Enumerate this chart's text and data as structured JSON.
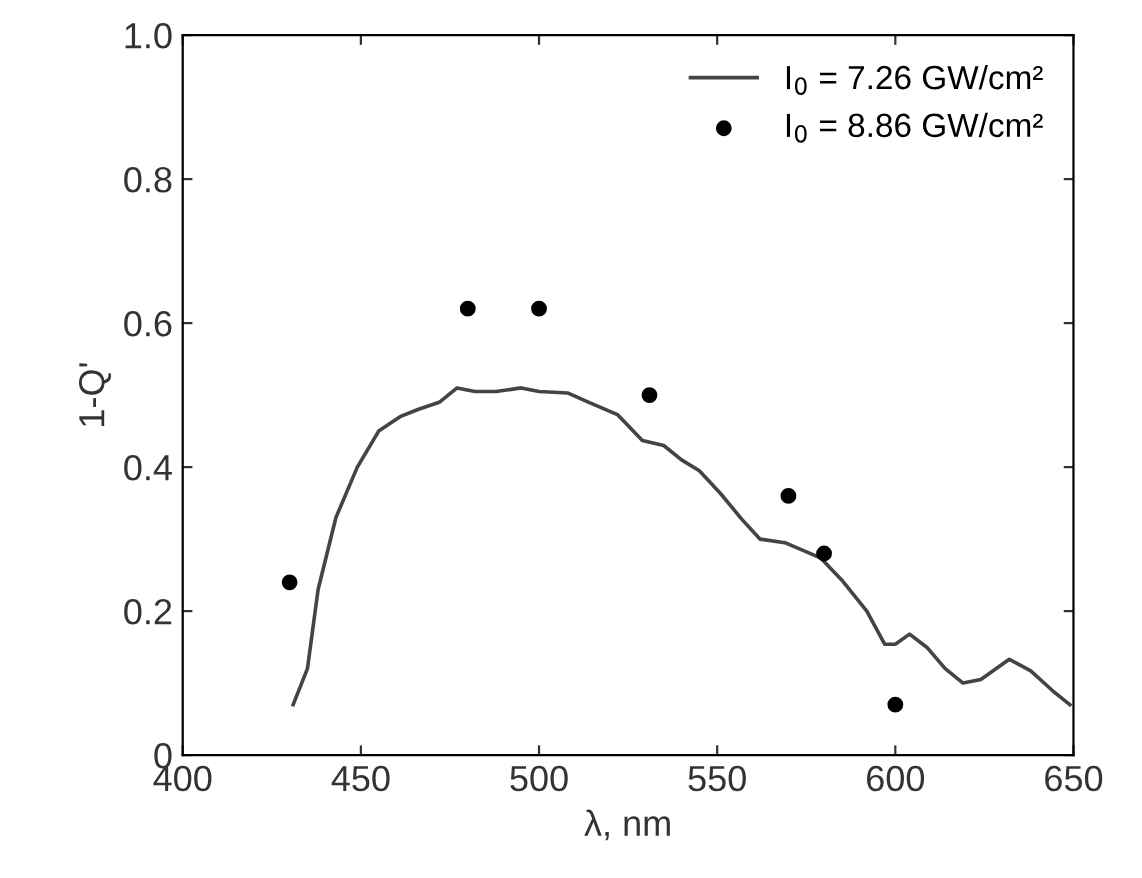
{
  "chart_data": {
    "type": "line",
    "xlabel": "λ, nm",
    "ylabel": "1-Q'",
    "xlim": [
      400,
      650
    ],
    "ylim": [
      0,
      1.0
    ],
    "xticks": [
      400,
      450,
      500,
      550,
      600,
      650
    ],
    "yticks": [
      0,
      {
        "value": 0.2,
        "label": "0.2"
      },
      {
        "value": 0.4,
        "label": "0.4"
      },
      {
        "value": 0.6,
        "label": "0.6"
      },
      {
        "value": 0.8,
        "label": "0.8"
      },
      {
        "value": 1.0,
        "label": "1.0"
      }
    ],
    "grid": false,
    "legend": "top right",
    "series": [
      {
        "name": "I$_{0}$ = 7.26 GW/cm²",
        "color": "#444444",
        "marker": "none",
        "x": [
          431,
          435,
          438,
          443,
          449,
          455,
          461,
          466,
          472,
          477,
          482,
          488,
          495,
          500,
          508,
          514,
          522,
          529,
          535,
          540,
          545,
          551,
          557,
          562,
          569,
          579,
          585,
          592,
          597,
          600,
          604,
          609,
          614,
          619,
          624,
          632,
          638,
          644,
          649
        ],
        "values": [
          0.07,
          0.12,
          0.23,
          0.33,
          0.4,
          0.45,
          0.47,
          0.48,
          0.49,
          0.51,
          0.505,
          0.505,
          0.51,
          0.505,
          0.503,
          0.49,
          0.473,
          0.437,
          0.43,
          0.41,
          0.395,
          0.363,
          0.327,
          0.3,
          0.295,
          0.274,
          0.243,
          0.2,
          0.154,
          0.154,
          0.168,
          0.149,
          0.12,
          0.1,
          0.105,
          0.133,
          0.117,
          0.09,
          0.07
        ]
      },
      {
        "name": "I$_{0}$ = 8.86 GW/cm²",
        "type": "scatter",
        "color": "#000000",
        "marker": "circle",
        "x": [
          430,
          480,
          500,
          531,
          570,
          580,
          600
        ],
        "values": [
          0.24,
          0.62,
          0.62,
          0.5,
          0.36,
          0.28,
          0.07
        ]
      }
    ]
  }
}
